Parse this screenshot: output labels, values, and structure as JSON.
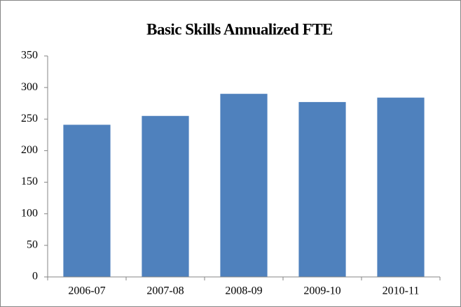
{
  "chart_data": {
    "type": "bar",
    "title": "Basic Skills Annualized FTE",
    "categories": [
      "2006-07",
      "2007-08",
      "2008-09",
      "2009-10",
      "2010-11"
    ],
    "values": [
      241,
      255,
      290,
      277,
      284
    ],
    "color": "#4f81bd",
    "ylim": [
      0,
      350
    ],
    "yticks": [
      0,
      50,
      100,
      150,
      200,
      250,
      300,
      350
    ],
    "grid": false
  }
}
